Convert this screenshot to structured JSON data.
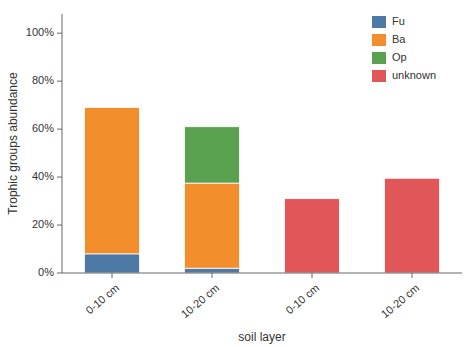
{
  "chart_data": {
    "type": "bar",
    "stacked": true,
    "categories": [
      "0-10 cm",
      "10-20 cm",
      "0-10 cm",
      "10-20 cm"
    ],
    "series": [
      {
        "name": "Fu",
        "values": [
          0.08,
          0.02,
          0.0,
          0.0
        ]
      },
      {
        "name": "Ba",
        "values": [
          0.61,
          0.355,
          0.0,
          0.0
        ]
      },
      {
        "name": "Op",
        "values": [
          0.0,
          0.235,
          0.0,
          0.0
        ]
      },
      {
        "name": "unknown",
        "values": [
          0.0,
          0.0,
          0.31,
          0.395
        ]
      }
    ],
    "xlabel": "soil layer",
    "ylabel": "Trophic groups abundance",
    "ylim": [
      0,
      1.08
    ],
    "yticks": [
      {
        "value": 0.0,
        "label": "0%"
      },
      {
        "value": 0.2,
        "label": "20%"
      },
      {
        "value": 0.4,
        "label": "40%"
      },
      {
        "value": 0.6,
        "label": "60%"
      },
      {
        "value": 0.8,
        "label": "80%"
      },
      {
        "value": 1.0,
        "label": "100%"
      }
    ],
    "legend": "upper right"
  }
}
